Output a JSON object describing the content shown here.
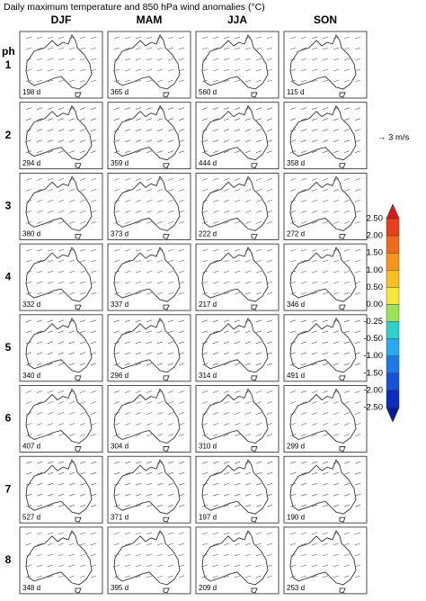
{
  "header": {
    "title": "Daily maximum temperature and 850 hPa wind anomalies (°C)",
    "columns": [
      "DJF",
      "MAM",
      "JJA",
      "SON"
    ],
    "row_prefix": "ph"
  },
  "panels": [
    {
      "phase": "1",
      "days": [
        "198 d",
        "365 d",
        "560 d",
        "115 d"
      ]
    },
    {
      "phase": "2",
      "days": [
        "294 d",
        "359 d",
        "444 d",
        "358 d"
      ]
    },
    {
      "phase": "3",
      "days": [
        "380 d",
        "373 d",
        "222 d",
        "272 d"
      ]
    },
    {
      "phase": "4",
      "days": [
        "332 d",
        "337 d",
        "217 d",
        "346 d"
      ]
    },
    {
      "phase": "5",
      "days": [
        "340 d",
        "296 d",
        "314 d",
        "491 d"
      ]
    },
    {
      "phase": "6",
      "days": [
        "407 d",
        "304 d",
        "310 d",
        "299 d"
      ]
    },
    {
      "phase": "7",
      "days": [
        "527 d",
        "371 d",
        "197 d",
        "190 d"
      ]
    },
    {
      "phase": "8",
      "days": [
        "348 d",
        "395 d",
        "209 d",
        "253 d"
      ]
    }
  ],
  "wind_reference": "→ 3 m/s",
  "colorbar": {
    "labels": [
      "2.50",
      "2.00",
      "1.50",
      "1.00",
      "0.50",
      "0.00",
      "-0.25",
      "-0.50",
      "-1.00",
      "-1.50",
      "-2.00",
      "-2.50"
    ],
    "colors": [
      "#d7191c",
      "#e8401c",
      "#f26b1d",
      "#f7941d",
      "#fbbf24",
      "#f5e83a",
      "#9be35a",
      "#2fd0c8",
      "#29a9f0",
      "#1f78e8",
      "#1550d8",
      "#0b2cc0",
      "#071a9a"
    ]
  }
}
